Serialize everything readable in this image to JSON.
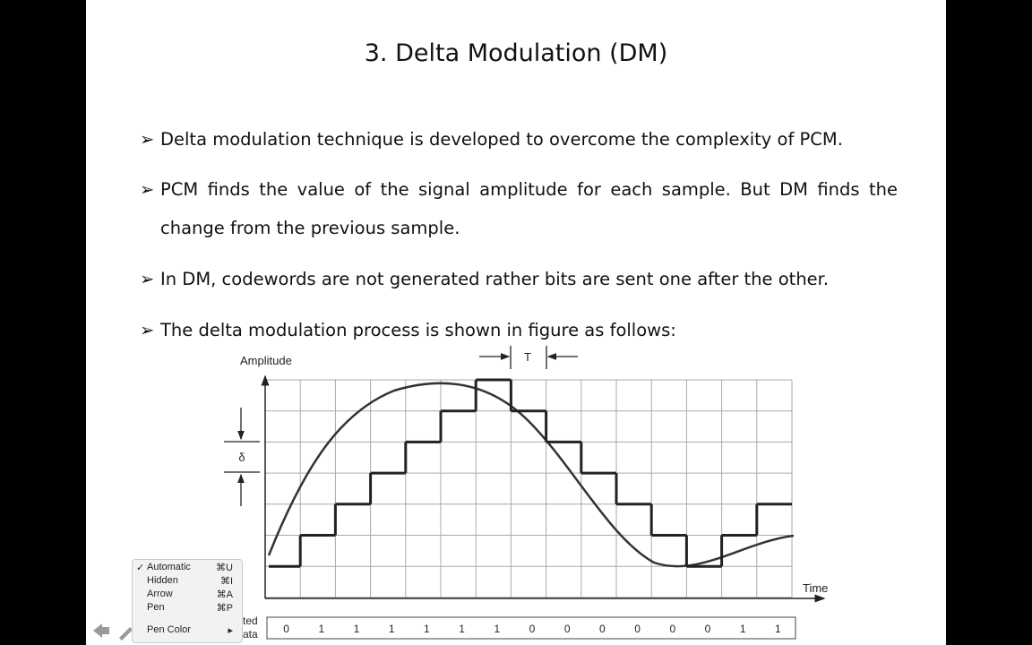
{
  "slide": {
    "title": "3. Delta Modulation (DM)",
    "bullets": [
      "Delta modulation technique is developed to overcome the complexity of PCM.",
      "PCM finds the value of the signal amplitude for each sample. But DM finds the change from the previous sample.",
      "In DM, codewords are not generated rather bits are sent one after the other.",
      "The delta modulation process is shown in figure as follows:"
    ],
    "figure": {
      "y_label": "Amplitude",
      "x_label": "Time",
      "delta": "δ",
      "period": "T",
      "data_label": [
        "ted",
        "ata"
      ],
      "bits": [
        "0",
        "1",
        "1",
        "1",
        "1",
        "1",
        "1",
        "0",
        "0",
        "0",
        "0",
        "0",
        "0",
        "1",
        "1"
      ]
    }
  },
  "menu": {
    "items": [
      {
        "label": "Automatic",
        "shortcut": "⌘U"
      },
      {
        "label": "Hidden",
        "shortcut": "⌘I"
      },
      {
        "label": "Arrow",
        "shortcut": "⌘A"
      },
      {
        "label": "Pen",
        "shortcut": "⌘P"
      },
      {
        "label": "Pen Color",
        "shortcut": "▸"
      }
    ]
  }
}
